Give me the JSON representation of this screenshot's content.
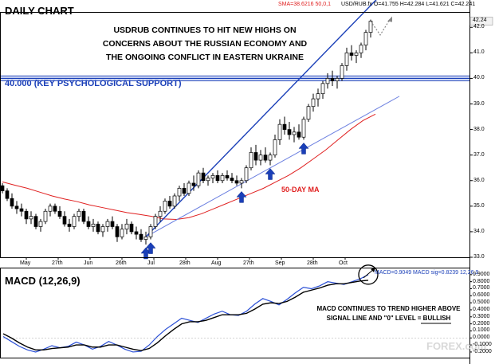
{
  "chart_data": [
    {
      "type": "candlestick",
      "title": "DAILY CHART",
      "symbol_header": "USD/RUB.fx O=41.755 H=42.284 L=41.621 C=42.241",
      "sma_header": "SMA=38.6216  50,0,1",
      "annotation_lines": [
        "USDRUB CONTINUES TO HIT NEW HIGHS ON",
        "CONCERNS ABOUT THE RUSSIAN ECONOMY AND",
        "THE ONGOING CONFLICT IN EASTERN UKRAINE"
      ],
      "support_label": "40.000  (KEY PSYCHOLOGICAL SUPPORT)",
      "support_level": 40.0,
      "ma_label": "50-DAY MA",
      "last_price_label": "42.24",
      "last_price": 42.24,
      "ylim": [
        33.0,
        42.6
      ],
      "y_ticks": [
        "42.0",
        "41.0",
        "40.0",
        "39.0",
        "38.0",
        "37.0",
        "36.0",
        "35.0",
        "34.0",
        "33.0"
      ],
      "x_tick_labels": [
        "May",
        "27th",
        "Jun",
        "26th",
        "Jul",
        "28th",
        "Aug",
        "27th",
        "Sep",
        "28th",
        "Oct"
      ],
      "up_arrow_bars": [
        30,
        31,
        50,
        56,
        63
      ],
      "candles": [
        [
          35.8,
          35.9,
          35.5,
          35.6
        ],
        [
          35.6,
          35.7,
          35.2,
          35.3
        ],
        [
          35.3,
          35.5,
          34.9,
          35.0
        ],
        [
          35.0,
          35.2,
          34.7,
          34.9
        ],
        [
          34.9,
          35.1,
          34.6,
          34.8
        ],
        [
          34.8,
          34.9,
          34.3,
          34.5
        ],
        [
          34.5,
          34.8,
          34.3,
          34.6
        ],
        [
          34.6,
          34.7,
          34.1,
          34.2
        ],
        [
          34.2,
          34.5,
          34.0,
          34.4
        ],
        [
          34.4,
          34.9,
          34.3,
          34.8
        ],
        [
          34.8,
          35.1,
          34.6,
          35.0
        ],
        [
          35.0,
          35.1,
          34.7,
          34.8
        ],
        [
          34.8,
          35.0,
          34.5,
          34.6
        ],
        [
          34.6,
          34.8,
          34.2,
          34.3
        ],
        [
          34.3,
          34.5,
          34.0,
          34.2
        ],
        [
          34.2,
          34.7,
          34.1,
          34.6
        ],
        [
          34.6,
          34.9,
          34.4,
          34.8
        ],
        [
          34.8,
          34.9,
          34.3,
          34.4
        ],
        [
          34.4,
          34.6,
          34.1,
          34.2
        ],
        [
          34.2,
          34.5,
          34.0,
          34.3
        ],
        [
          34.3,
          34.4,
          33.9,
          34.0
        ],
        [
          34.0,
          34.3,
          33.8,
          34.2
        ],
        [
          34.2,
          34.5,
          34.0,
          34.4
        ],
        [
          34.4,
          34.6,
          34.1,
          34.2
        ],
        [
          34.2,
          34.3,
          33.6,
          33.8
        ],
        [
          33.8,
          34.3,
          33.7,
          34.1
        ],
        [
          34.1,
          34.5,
          33.9,
          34.3
        ],
        [
          34.3,
          34.4,
          33.9,
          34.0
        ],
        [
          34.0,
          34.2,
          33.7,
          33.9
        ],
        [
          33.9,
          34.1,
          33.6,
          33.7
        ],
        [
          33.7,
          34.0,
          33.5,
          33.8
        ],
        [
          33.8,
          34.3,
          33.7,
          34.2
        ],
        [
          34.2,
          34.7,
          34.1,
          34.6
        ],
        [
          34.6,
          35.0,
          34.4,
          34.8
        ],
        [
          34.8,
          35.3,
          34.7,
          35.2
        ],
        [
          35.2,
          35.4,
          34.9,
          35.0
        ],
        [
          35.0,
          35.5,
          34.9,
          35.4
        ],
        [
          35.4,
          35.8,
          35.2,
          35.7
        ],
        [
          35.7,
          35.9,
          35.4,
          35.5
        ],
        [
          35.5,
          36.0,
          35.4,
          35.9
        ],
        [
          35.9,
          36.2,
          35.6,
          35.8
        ],
        [
          35.8,
          36.4,
          35.7,
          36.3
        ],
        [
          36.3,
          36.5,
          35.9,
          36.0
        ],
        [
          36.0,
          36.2,
          35.8,
          36.1
        ],
        [
          36.1,
          36.3,
          35.9,
          36.2
        ],
        [
          36.2,
          36.4,
          35.9,
          36.0
        ],
        [
          36.0,
          36.3,
          35.9,
          36.2
        ],
        [
          36.2,
          36.4,
          36.0,
          36.1
        ],
        [
          36.1,
          36.3,
          35.9,
          36.0
        ],
        [
          36.0,
          36.2,
          35.8,
          35.9
        ],
        [
          35.9,
          36.1,
          35.7,
          36.0
        ],
        [
          36.0,
          36.6,
          35.9,
          36.5
        ],
        [
          36.5,
          37.3,
          36.4,
          37.1
        ],
        [
          37.1,
          37.4,
          36.6,
          36.8
        ],
        [
          36.8,
          37.2,
          36.6,
          37.0
        ],
        [
          37.0,
          37.3,
          36.7,
          36.8
        ],
        [
          36.8,
          37.1,
          36.6,
          37.0
        ],
        [
          37.0,
          37.8,
          36.9,
          37.6
        ],
        [
          37.6,
          38.4,
          37.4,
          38.2
        ],
        [
          38.2,
          38.5,
          37.8,
          38.0
        ],
        [
          38.0,
          38.3,
          37.6,
          37.8
        ],
        [
          37.8,
          38.1,
          37.5,
          37.9
        ],
        [
          37.9,
          38.2,
          37.6,
          37.7
        ],
        [
          37.7,
          38.5,
          37.6,
          38.4
        ],
        [
          38.4,
          39.0,
          38.3,
          38.9
        ],
        [
          38.9,
          39.4,
          38.7,
          39.2
        ],
        [
          39.2,
          39.6,
          38.9,
          39.4
        ],
        [
          39.4,
          39.9,
          39.2,
          39.8
        ],
        [
          39.8,
          40.2,
          39.6,
          40.0
        ],
        [
          40.0,
          40.3,
          39.7,
          39.9
        ],
        [
          39.9,
          40.1,
          39.6,
          40.0
        ],
        [
          40.0,
          40.6,
          39.9,
          40.5
        ],
        [
          40.5,
          41.2,
          40.3,
          41.0
        ],
        [
          41.0,
          41.3,
          40.7,
          40.9
        ],
        [
          40.9,
          41.1,
          40.6,
          41.0
        ],
        [
          41.0,
          41.4,
          40.8,
          41.3
        ],
        [
          41.3,
          41.9,
          41.1,
          41.8
        ],
        [
          41.8,
          42.3,
          41.6,
          42.24
        ]
      ],
      "sma50": [
        35.95,
        35.82,
        35.7,
        35.55,
        35.4,
        35.28,
        35.18,
        35.05,
        34.95,
        34.85,
        34.75,
        34.68,
        34.6,
        34.5,
        34.48,
        34.55,
        34.7,
        34.9,
        35.1,
        35.3,
        35.5,
        35.7,
        35.95,
        36.2,
        36.5,
        36.85,
        37.2,
        37.6,
        38.0,
        38.35,
        38.6
      ],
      "trendline_steep": {
        "from": [
          30,
          33.8
        ],
        "to": [
          84,
          44.2
        ]
      },
      "trendline_shallow": {
        "from": [
          30,
          33.8
        ],
        "to": [
          83,
          39.3
        ]
      },
      "forecast_path": [
        [
          77,
          42.24
        ],
        [
          79,
          41.7
        ],
        [
          81,
          42.3
        ]
      ]
    },
    {
      "type": "line",
      "title": "MACD (12,26,9)",
      "header": "MACD=0.9049 MACD sig=0.8239   12,26,9",
      "annotation_lines": [
        "MACD CONTINUES TO TREND HIGHER ABOVE",
        "SIGNAL LINE AND \"0\" LEVEL = BULLISH"
      ],
      "bullish_word": "BULLISH",
      "ylim": [
        -0.28,
        1.0
      ],
      "y_ticks": [
        "0.9000",
        "0.8000",
        "0.7000",
        "0.6000",
        "0.5000",
        "0.4000",
        "0.3000",
        "0.2000",
        "0.1000",
        "0.0000",
        "-0.1000",
        "-0.2000"
      ],
      "series": [
        {
          "name": "MACD",
          "color": "#2a4fd6",
          "values": [
            0.02,
            -0.05,
            -0.12,
            -0.17,
            -0.2,
            -0.16,
            -0.11,
            -0.14,
            -0.12,
            -0.06,
            -0.1,
            -0.16,
            -0.12,
            -0.05,
            -0.1,
            -0.16,
            -0.2,
            -0.19,
            -0.1,
            0.02,
            0.12,
            0.2,
            0.28,
            0.25,
            0.22,
            0.28,
            0.34,
            0.38,
            0.33,
            0.32,
            0.38,
            0.48,
            0.56,
            0.52,
            0.47,
            0.55,
            0.64,
            0.72,
            0.7,
            0.74,
            0.8,
            0.78,
            0.76,
            0.8,
            0.84,
            0.9
          ]
        },
        {
          "name": "Signal",
          "color": "#000000",
          "values": [
            0.06,
            0.0,
            -0.07,
            -0.13,
            -0.17,
            -0.17,
            -0.15,
            -0.14,
            -0.13,
            -0.1,
            -0.1,
            -0.13,
            -0.13,
            -0.1,
            -0.1,
            -0.13,
            -0.16,
            -0.18,
            -0.15,
            -0.07,
            0.03,
            0.12,
            0.2,
            0.23,
            0.23,
            0.25,
            0.29,
            0.33,
            0.33,
            0.33,
            0.35,
            0.41,
            0.48,
            0.5,
            0.49,
            0.52,
            0.58,
            0.65,
            0.68,
            0.71,
            0.75,
            0.77,
            0.77,
            0.79,
            0.81,
            0.82
          ]
        }
      ]
    }
  ],
  "watermark": "FOREX.com"
}
